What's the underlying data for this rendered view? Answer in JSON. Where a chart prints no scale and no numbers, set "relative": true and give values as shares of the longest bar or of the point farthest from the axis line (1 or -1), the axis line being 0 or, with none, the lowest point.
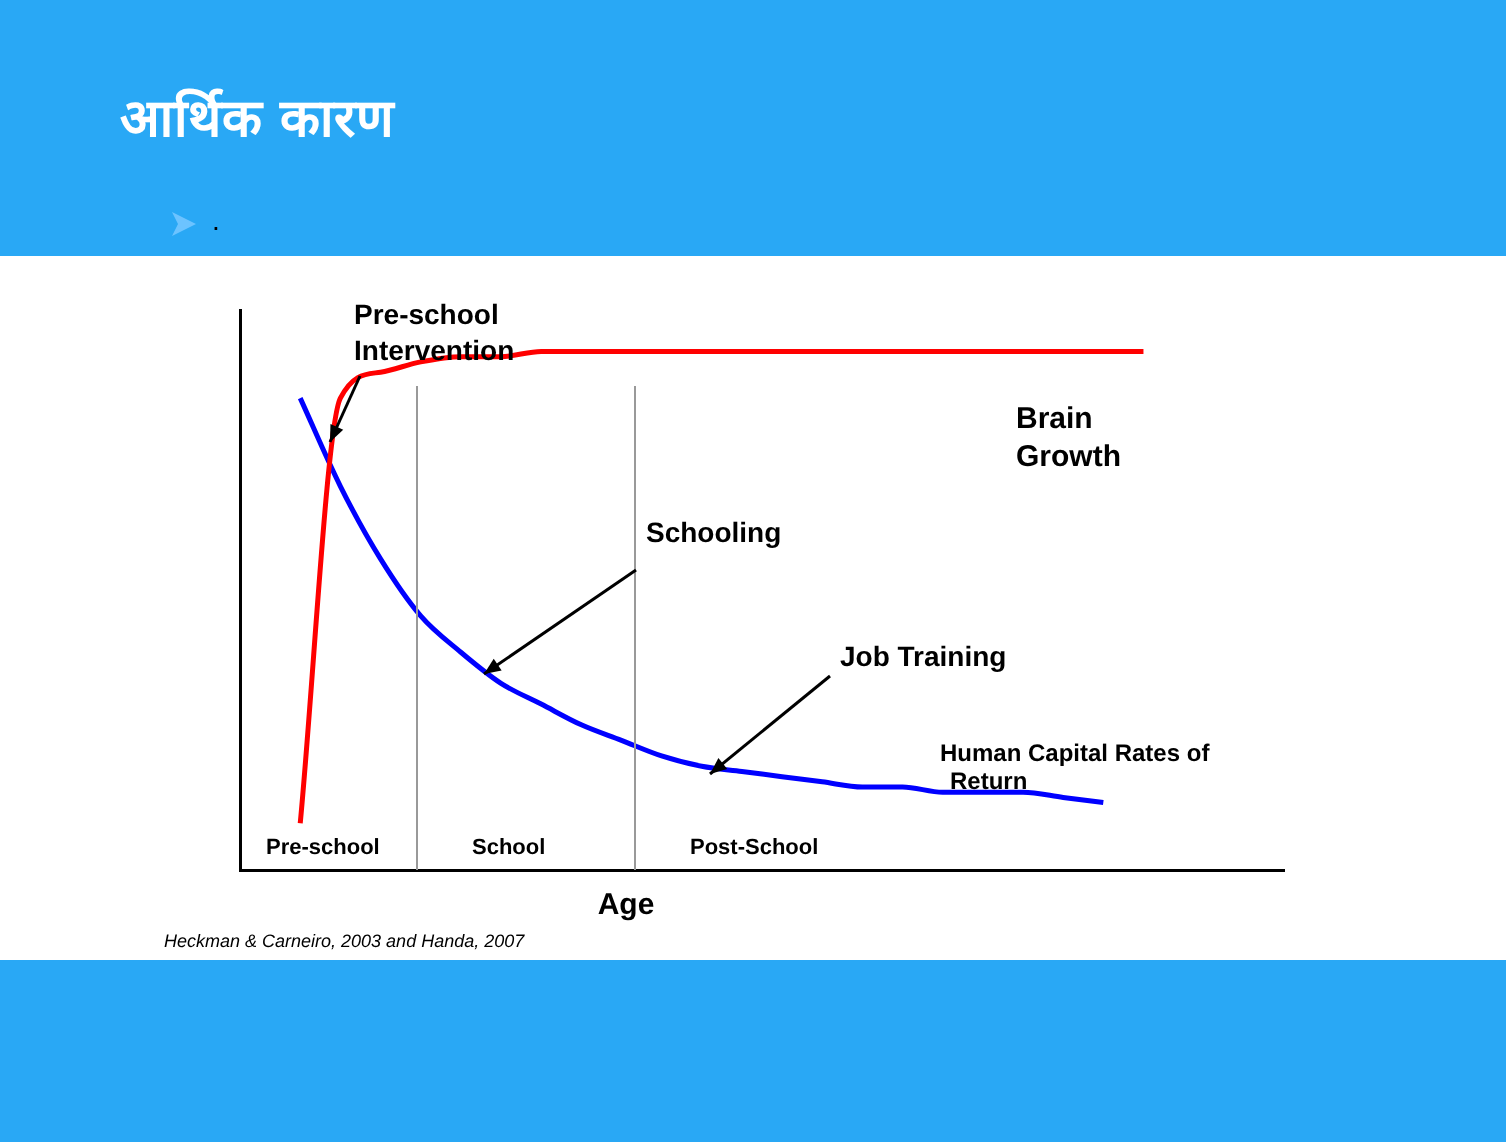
{
  "chart_data": {
    "type": "line",
    "title": "आर्थिक कारण",
    "subtitle": ".",
    "xlabel": "Age",
    "relative": true,
    "legend": false,
    "grid": false,
    "marker": "none",
    "categories": [
      null,
      null,
      null,
      null,
      null,
      null,
      null,
      null,
      null,
      null,
      null,
      null,
      null,
      null,
      null,
      null,
      null,
      null,
      null,
      null,
      null,
      null,
      null,
      null,
      null,
      null
    ],
    "series": [
      {
        "name": "Brain Growth",
        "color": "#ff0000",
        "values": [
          null,
          0.09,
          0.91,
          0.96,
          0.98,
          0.99,
          0.99,
          1,
          1,
          1,
          1,
          1,
          1,
          1,
          1,
          1,
          1,
          1,
          1,
          1,
          1,
          1,
          1,
          null,
          null,
          null
        ]
      },
      {
        "name": "Human Capital Rates of Return",
        "color": "#0000ff",
        "values": [
          null,
          0.91,
          0.74,
          0.6,
          0.49,
          0.42,
          0.36,
          0.32,
          0.28,
          0.25,
          0.22,
          0.2,
          0.19,
          0.18,
          0.17,
          0.16,
          0.16,
          0.15,
          0.15,
          0.15,
          0.14,
          0.13,
          null,
          null,
          null,
          null
        ]
      }
    ],
    "annotations": [
      "Pre-school Intervention",
      "Schooling",
      "Job Training",
      "Pre-school",
      "School",
      "Post-School",
      "Heckman & Carneiro, 2003 and Handa, 2007"
    ]
  }
}
